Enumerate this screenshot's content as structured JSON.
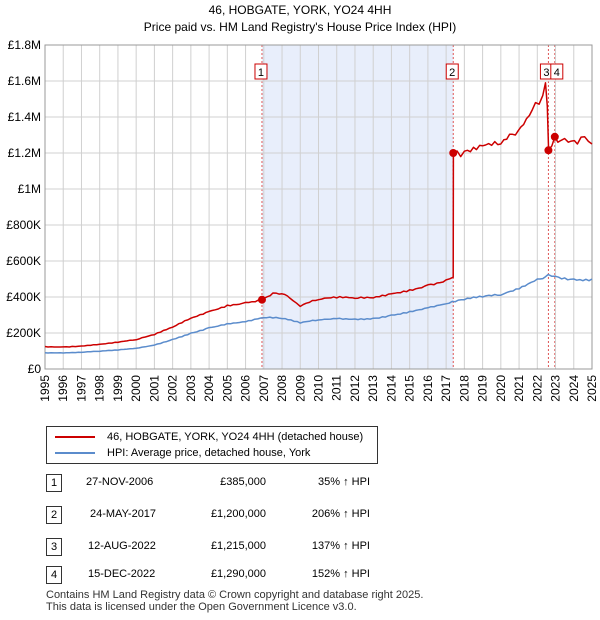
{
  "chart_data": {
    "type": "line",
    "title": "46, HOBGATE, YORK, YO24 4HH",
    "subtitle": "Price paid vs. HM Land Registry's House Price Index (HPI)",
    "ylim": [
      0,
      1800000
    ],
    "xlim": [
      1995,
      2025
    ],
    "y_ticks": [
      {
        "value": 0,
        "label": "£0"
      },
      {
        "value": 200000,
        "label": "£200K"
      },
      {
        "value": 400000,
        "label": "£400K"
      },
      {
        "value": 600000,
        "label": "£600K"
      },
      {
        "value": 800000,
        "label": "£800K"
      },
      {
        "value": 1000000,
        "label": "£1M"
      },
      {
        "value": 1200000,
        "label": "£1.2M"
      },
      {
        "value": 1400000,
        "label": "£1.4M"
      },
      {
        "value": 1600000,
        "label": "£1.6M"
      },
      {
        "value": 1800000,
        "label": "£1.8M"
      }
    ],
    "x_ticks": [
      "1995",
      "1996",
      "1997",
      "1998",
      "1999",
      "2000",
      "2001",
      "2002",
      "2003",
      "2004",
      "2005",
      "2006",
      "2007",
      "2008",
      "2009",
      "2010",
      "2011",
      "2012",
      "2013",
      "2014",
      "2015",
      "2016",
      "2017",
      "2018",
      "2019",
      "2020",
      "2021",
      "2022",
      "2023",
      "2024",
      "2025"
    ],
    "shaded_region": [
      2006.9,
      2017.4
    ],
    "series": [
      {
        "name": "46, HOBGATE, YORK, YO24 4HH (detached house)",
        "color": "#cc0000",
        "points": [
          [
            1995,
            125000
          ],
          [
            1996,
            123000
          ],
          [
            1997,
            128000
          ],
          [
            1998,
            137000
          ],
          [
            1999,
            148000
          ],
          [
            2000,
            162000
          ],
          [
            2001,
            190000
          ],
          [
            2002,
            232000
          ],
          [
            2003,
            282000
          ],
          [
            2004,
            320000
          ],
          [
            2005,
            355000
          ],
          [
            2006,
            370000
          ],
          [
            2006.9,
            385000
          ],
          [
            2007.5,
            422000
          ],
          [
            2008,
            418000
          ],
          [
            2008.6,
            380000
          ],
          [
            2009,
            348000
          ],
          [
            2009.5,
            370000
          ],
          [
            2010,
            385000
          ],
          [
            2011,
            395000
          ],
          [
            2012,
            392000
          ],
          [
            2013,
            395000
          ],
          [
            2014,
            418000
          ],
          [
            2015,
            440000
          ],
          [
            2016,
            468000
          ],
          [
            2017.0,
            495000
          ],
          [
            2017.39,
            510000
          ],
          [
            2017.4,
            1200000
          ],
          [
            2017.8,
            1180000
          ],
          [
            2018,
            1210000
          ],
          [
            2019,
            1240000
          ],
          [
            2020,
            1250000
          ],
          [
            2020.8,
            1300000
          ],
          [
            2021.4,
            1390000
          ],
          [
            2021.9,
            1480000
          ],
          [
            2022.3,
            1520000
          ],
          [
            2022.45,
            1590000
          ],
          [
            2022.55,
            1460000
          ],
          [
            2022.62,
            1215000
          ],
          [
            2022.8,
            1240000
          ],
          [
            2022.96,
            1290000
          ],
          [
            2023.3,
            1270000
          ],
          [
            2023.7,
            1260000
          ],
          [
            2024.2,
            1250000
          ],
          [
            2024.6,
            1290000
          ],
          [
            2025,
            1250000
          ]
        ]
      },
      {
        "name": "HPI: Average price, detached house, York",
        "color": "#5b8ccc",
        "points": [
          [
            1995,
            90000
          ],
          [
            1996,
            89000
          ],
          [
            1997,
            92000
          ],
          [
            1998,
            98000
          ],
          [
            1999,
            105000
          ],
          [
            2000,
            115000
          ],
          [
            2001,
            133000
          ],
          [
            2002,
            165000
          ],
          [
            2003,
            200000
          ],
          [
            2004,
            230000
          ],
          [
            2005,
            252000
          ],
          [
            2006,
            262000
          ],
          [
            2007,
            285000
          ],
          [
            2008,
            280000
          ],
          [
            2009,
            255000
          ],
          [
            2010,
            272000
          ],
          [
            2011,
            280000
          ],
          [
            2012,
            278000
          ],
          [
            2013,
            282000
          ],
          [
            2014,
            300000
          ],
          [
            2015,
            320000
          ],
          [
            2016,
            340000
          ],
          [
            2017,
            362000
          ],
          [
            2018,
            385000
          ],
          [
            2019,
            400000
          ],
          [
            2020,
            410000
          ],
          [
            2021,
            445000
          ],
          [
            2022,
            500000
          ],
          [
            2022.6,
            525000
          ],
          [
            2023,
            515000
          ],
          [
            2024,
            500000
          ],
          [
            2025,
            500000
          ]
        ]
      }
    ],
    "sales": [
      {
        "label": "1",
        "date": 2006.9,
        "price": 385000
      },
      {
        "label": "2",
        "date": 2017.39,
        "price": 1200000
      },
      {
        "label": "3",
        "date": 2022.61,
        "price": 1215000
      },
      {
        "label": "4",
        "date": 2022.96,
        "price": 1290000
      }
    ]
  },
  "legend": {
    "property_label": "46, HOBGATE, YORK, YO24 4HH (detached house)",
    "hpi_label": "HPI: Average price, detached house, York"
  },
  "transactions": [
    {
      "num": "1",
      "date": "27-NOV-2006",
      "price": "£385,000",
      "hpi": "35% ↑ HPI"
    },
    {
      "num": "2",
      "date": "24-MAY-2017",
      "price": "£1,200,000",
      "hpi": "206% ↑ HPI"
    },
    {
      "num": "3",
      "date": "12-AUG-2022",
      "price": "£1,215,000",
      "hpi": "137% ↑ HPI"
    },
    {
      "num": "4",
      "date": "15-DEC-2022",
      "price": "£1,290,000",
      "hpi": "152% ↑ HPI"
    }
  ],
  "footer": {
    "line1": "Contains HM Land Registry data © Crown copyright and database right 2025.",
    "line2": "This data is licensed under the Open Government Licence v3.0."
  }
}
